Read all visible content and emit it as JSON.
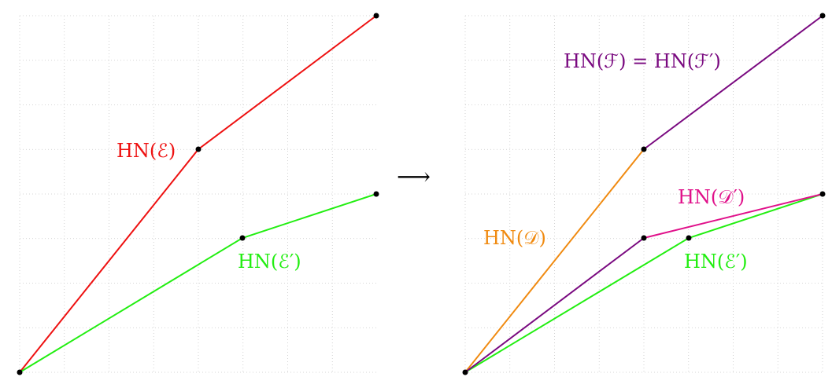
{
  "colors": {
    "red": "#ee1111",
    "green": "#22ee11",
    "purple": "#7a0a80",
    "orange": "#f08a10",
    "magenta": "#e0108a",
    "grid": "#c8c8c8",
    "point": "#000000"
  },
  "arrow": {
    "glyph": "⟶"
  },
  "left_panel": {
    "label_E": "HN(ℰ)",
    "label_E_prime": "HN(ℰ′)"
  },
  "right_panel": {
    "label_F": "HN(ℱ) = HN(ℱ′)",
    "label_D": "HN(𝒟)",
    "label_D_prime": "HN(𝒟′)",
    "label_E_prime": "HN(ℰ′)"
  }
}
